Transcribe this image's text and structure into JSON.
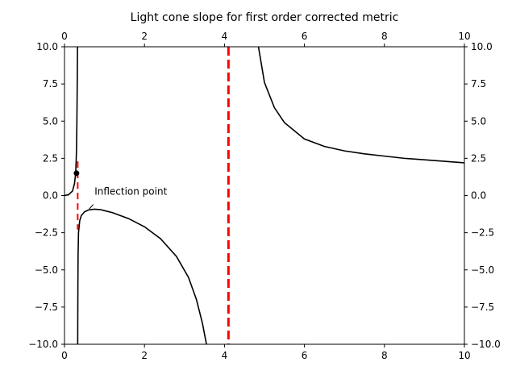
{
  "chart_data": {
    "type": "line",
    "title": "Light cone slope for first order corrected metric",
    "xlabel": "",
    "ylabel": "",
    "xlim": [
      0,
      10
    ],
    "ylim": [
      -10,
      10
    ],
    "xticks": [
      0,
      2,
      4,
      6,
      8,
      10
    ],
    "yticks": [
      -10.0,
      -7.5,
      -5.0,
      -2.5,
      0.0,
      2.5,
      5.0,
      7.5,
      10.0
    ],
    "xtick_labels": [
      "0",
      "2",
      "4",
      "6",
      "8",
      "10"
    ],
    "ytick_labels": [
      "−10.0",
      "−7.5",
      "−5.0",
      "−2.5",
      "0.0",
      "2.5",
      "5.0",
      "7.5",
      "10.0"
    ],
    "grid": false,
    "colors": {
      "curve": "#000000",
      "asymptote": "#ff0000"
    },
    "series": [
      {
        "segment": "left-branch",
        "x": [
          0.0,
          0.1,
          0.2,
          0.25,
          0.28,
          0.3,
          0.31,
          0.32,
          0.325
        ],
        "y": [
          0.0,
          0.05,
          0.3,
          0.8,
          1.5,
          3.0,
          5.0,
          8.0,
          10.0
        ]
      },
      {
        "segment": "middle-branch",
        "x": [
          0.33,
          0.335,
          0.34,
          0.35,
          0.38,
          0.42,
          0.5,
          0.6,
          0.75,
          0.9,
          1.2,
          1.6,
          2.0,
          2.4,
          2.8,
          3.1,
          3.3,
          3.45,
          3.55
        ],
        "y": [
          -10.0,
          -6.0,
          -4.0,
          -2.5,
          -1.7,
          -1.35,
          -1.1,
          -0.97,
          -0.92,
          -0.95,
          -1.15,
          -1.55,
          -2.1,
          -2.9,
          -4.1,
          -5.5,
          -7.0,
          -8.6,
          -10.0
        ]
      },
      {
        "segment": "right-branch",
        "x": [
          4.85,
          5.0,
          5.25,
          5.5,
          6.0,
          6.5,
          7.0,
          7.5,
          8.0,
          8.5,
          9.0,
          9.5,
          10.0
        ],
        "y": [
          10.0,
          7.6,
          5.9,
          4.9,
          3.8,
          3.3,
          3.0,
          2.8,
          2.65,
          2.5,
          2.4,
          2.3,
          2.2
        ]
      }
    ],
    "asymptotes": [
      {
        "x": 0.33,
        "y_range": [
          -2.3,
          2.3
        ],
        "style": "dashed"
      },
      {
        "x": 4.1,
        "y_range": [
          -10,
          10
        ],
        "style": "dashed"
      }
    ],
    "marker": {
      "x": 0.3,
      "y": 1.5
    },
    "annotation": {
      "text": "Inflection point",
      "text_x": 0.75,
      "text_y": 0.0,
      "arrow_from": [
        0.72,
        -0.6
      ],
      "arrow_to": [
        0.62,
        -0.9
      ]
    }
  }
}
